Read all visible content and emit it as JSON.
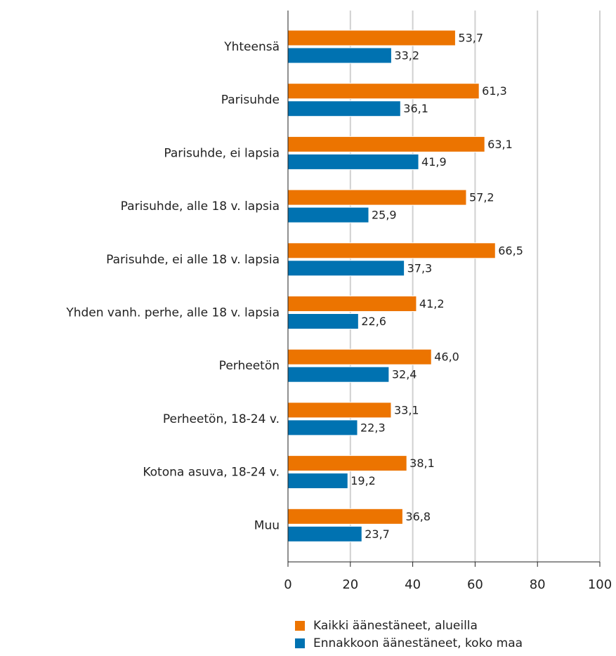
{
  "chart_data": {
    "type": "hbar",
    "categories": [
      "Yhteensä",
      "Parisuhde",
      "Parisuhde, ei lapsia",
      "Parisuhde, alle 18 v. lapsia",
      "Parisuhde, ei alle 18 v. lapsia",
      "Yhden vanh. perhe, alle 18 v. lapsia",
      "Perheetön",
      "Perheetön, 18-24 v.",
      "Kotona asuva, 18-24 v.",
      "Muu"
    ],
    "series": [
      {
        "name": "Kaikki äänestäneet, alueilla",
        "color": "#ec7400",
        "values": [
          53.7,
          61.3,
          63.1,
          57.2,
          66.5,
          41.2,
          46.0,
          33.1,
          38.1,
          36.8
        ],
        "value_labels": [
          "53,7",
          "61,3",
          "63,1",
          "57,2",
          "66,5",
          "41,2",
          "46,0",
          "33,1",
          "38,1",
          "36,8"
        ]
      },
      {
        "name": "Ennakkoon äänestäneet, koko maa",
        "color": "#0072b1",
        "values": [
          33.2,
          36.1,
          41.9,
          25.9,
          37.3,
          22.6,
          32.4,
          22.3,
          19.2,
          23.7
        ],
        "value_labels": [
          "33,2",
          "36,1",
          "41,9",
          "25,9",
          "37,3",
          "22,6",
          "32,4",
          "22,3",
          "19,2",
          "23,7"
        ]
      }
    ],
    "xlim": [
      0,
      100
    ],
    "xticks": [
      0,
      20,
      40,
      60,
      80,
      100
    ],
    "grid": true,
    "legend": "bottom"
  }
}
